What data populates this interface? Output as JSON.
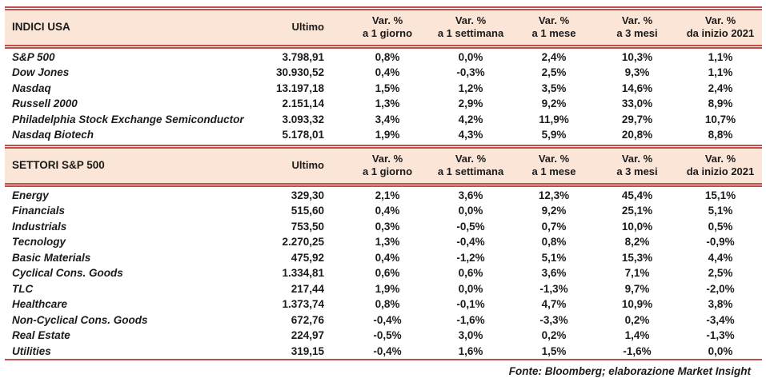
{
  "colors": {
    "band_bg": "#fbe5d6",
    "accent_red": "#c0504d",
    "text": "#1b1b1b"
  },
  "footer": {
    "source_label": "Fonte: Bloomberg; elaborazione Market Insight"
  },
  "chart_data": [
    {
      "type": "table",
      "title": "INDICI USA",
      "ultimo_label": "Ultimo",
      "var_headers": [
        {
          "line1": "Var. %",
          "line2": "a 1 giorno"
        },
        {
          "line1": "Var. %",
          "line2": "a 1 settimana"
        },
        {
          "line1": "Var. %",
          "line2": "a 1 mese"
        },
        {
          "line1": "Var. %",
          "line2": "a 3 mesi"
        },
        {
          "line1": "Var. %",
          "line2": "da inizio 2021"
        }
      ],
      "rows": [
        {
          "label": "S&P 500",
          "ultimo": "3.798,91",
          "values": [
            "0,8%",
            "0,0%",
            "2,4%",
            "10,3%",
            "1,1%"
          ]
        },
        {
          "label": "Dow Jones",
          "ultimo": "30.930,52",
          "values": [
            "0,4%",
            "-0,3%",
            "2,5%",
            "9,3%",
            "1,1%"
          ]
        },
        {
          "label": "Nasdaq",
          "ultimo": "13.197,18",
          "values": [
            "1,5%",
            "1,2%",
            "3,5%",
            "14,6%",
            "2,4%"
          ]
        },
        {
          "label": "Russell 2000",
          "ultimo": "2.151,14",
          "values": [
            "1,3%",
            "2,9%",
            "9,2%",
            "33,0%",
            "8,9%"
          ]
        },
        {
          "label": "Philadelphia Stock Exchange Semiconductor",
          "ultimo": "3.093,32",
          "values": [
            "3,4%",
            "4,2%",
            "11,9%",
            "29,7%",
            "10,7%"
          ]
        },
        {
          "label": "Nasdaq Biotech",
          "ultimo": "5.178,01",
          "values": [
            "1,9%",
            "4,3%",
            "5,9%",
            "20,8%",
            "8,8%"
          ]
        }
      ]
    },
    {
      "type": "table",
      "title": "SETTORI S&P 500",
      "ultimo_label": "Ultimo",
      "var_headers": [
        {
          "line1": "Var. %",
          "line2": "a 1 giorno"
        },
        {
          "line1": "Var. %",
          "line2": "a 1 settimana"
        },
        {
          "line1": "Var. %",
          "line2": "a 1 mese"
        },
        {
          "line1": "Var. %",
          "line2": "a 3 mesi"
        },
        {
          "line1": "Var. %",
          "line2": "da inizio 2021"
        }
      ],
      "rows": [
        {
          "label": "Energy",
          "ultimo": "329,30",
          "values": [
            "2,1%",
            "3,6%",
            "12,3%",
            "45,4%",
            "15,1%"
          ]
        },
        {
          "label": "Financials",
          "ultimo": "515,60",
          "values": [
            "0,4%",
            "0,0%",
            "9,2%",
            "25,1%",
            "5,1%"
          ]
        },
        {
          "label": "Industrials",
          "ultimo": "753,50",
          "values": [
            "0,3%",
            "-0,5%",
            "0,7%",
            "10,0%",
            "0,5%"
          ]
        },
        {
          "label": "Tecnology",
          "ultimo": "2.270,25",
          "values": [
            "1,3%",
            "-0,4%",
            "0,8%",
            "8,2%",
            "-0,9%"
          ]
        },
        {
          "label": "Basic Materials",
          "ultimo": "475,92",
          "values": [
            "0,4%",
            "-1,2%",
            "5,1%",
            "15,3%",
            "4,4%"
          ]
        },
        {
          "label": "Cyclical Cons. Goods",
          "ultimo": "1.334,81",
          "values": [
            "0,6%",
            "0,6%",
            "3,6%",
            "7,1%",
            "2,5%"
          ]
        },
        {
          "label": "TLC",
          "ultimo": "217,44",
          "values": [
            "1,9%",
            "0,0%",
            "-1,3%",
            "9,7%",
            "-2,0%"
          ]
        },
        {
          "label": "Healthcare",
          "ultimo": "1.373,74",
          "values": [
            "0,8%",
            "-0,1%",
            "4,7%",
            "10,9%",
            "3,8%"
          ]
        },
        {
          "label": "Non-Cyclical Cons. Goods",
          "ultimo": "672,76",
          "values": [
            "-0,4%",
            "-1,6%",
            "-3,3%",
            "0,2%",
            "-3,4%"
          ]
        },
        {
          "label": "Real Estate",
          "ultimo": "224,97",
          "values": [
            "-0,5%",
            "3,0%",
            "0,2%",
            "1,4%",
            "-1,3%"
          ]
        },
        {
          "label": "Utilities",
          "ultimo": "319,15",
          "values": [
            "-0,4%",
            "1,6%",
            "1,5%",
            "-1,6%",
            "0,0%"
          ]
        }
      ]
    }
  ]
}
